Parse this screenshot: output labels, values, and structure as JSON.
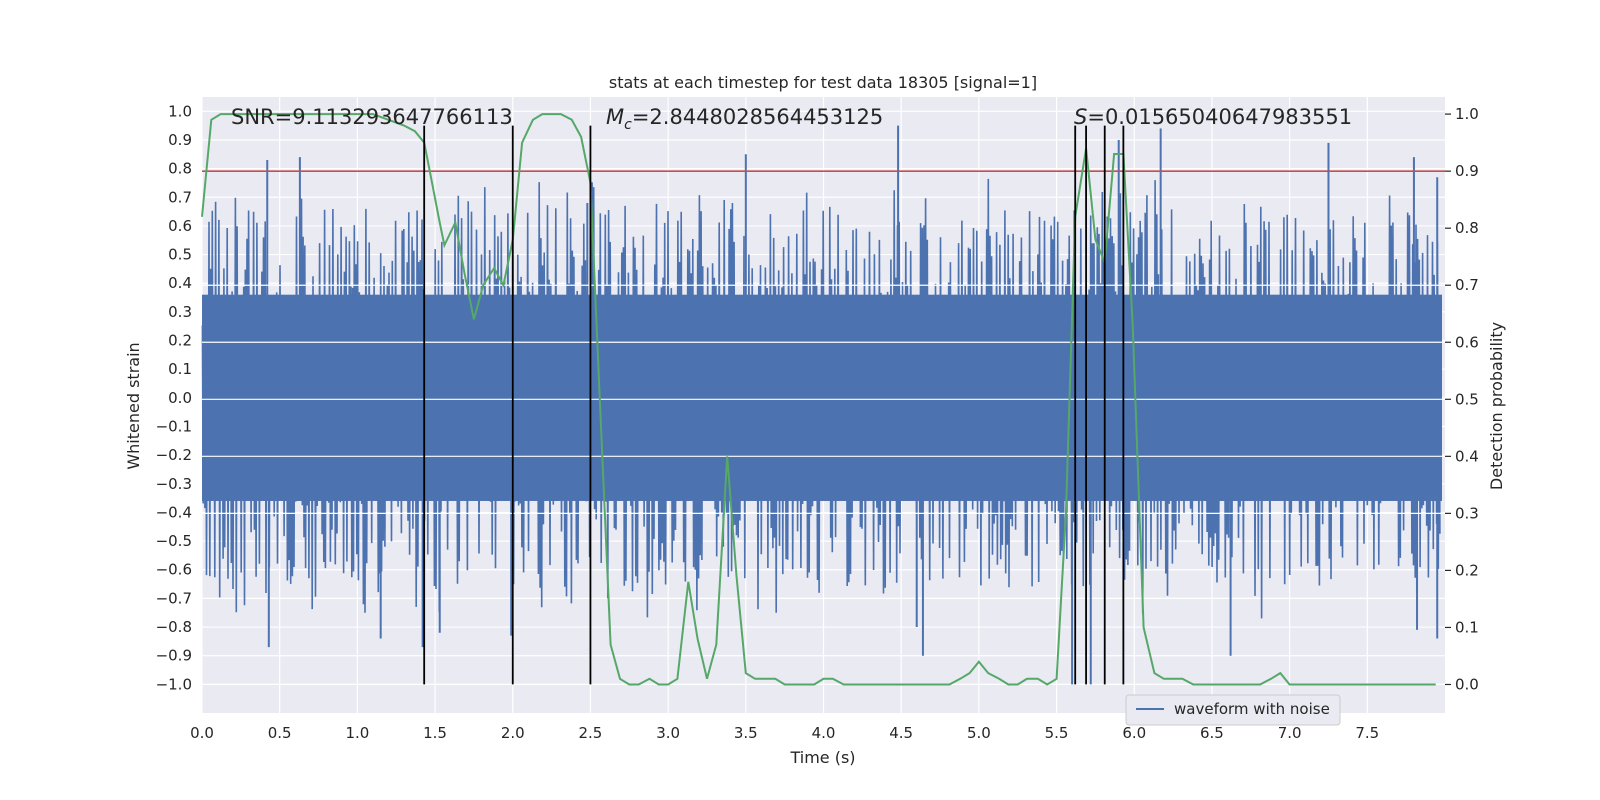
{
  "chart_data": {
    "type": "line",
    "title": "stats at each timestep for test data 18305 [signal=1]",
    "xlabel": "Time (s)",
    "ylabel": "Whitened strain",
    "y2label": "Detection probability",
    "xlim": [
      0.0,
      8.0
    ],
    "ylim": [
      -1.1,
      1.05
    ],
    "y2lim": [
      -0.05,
      1.03
    ],
    "xticks": [
      "0.0",
      "0.5",
      "1.0",
      "1.5",
      "2.0",
      "2.5",
      "3.0",
      "3.5",
      "4.0",
      "4.5",
      "5.0",
      "5.5",
      "6.0",
      "6.5",
      "7.0",
      "7.5"
    ],
    "yticks": [
      "1.0",
      "0.9",
      "0.8",
      "0.7",
      "0.6",
      "0.5",
      "0.4",
      "0.3",
      "0.2",
      "0.1",
      "0.0",
      "−0.1",
      "−0.2",
      "−0.3",
      "−0.4",
      "−0.5",
      "−0.6",
      "−0.7",
      "−0.8",
      "−0.9",
      "−1.0"
    ],
    "y2ticks": [
      "1.0",
      "0.9",
      "0.8",
      "0.7",
      "0.6",
      "0.5",
      "0.4",
      "0.3",
      "0.2",
      "0.1",
      "0.0"
    ],
    "annotations": {
      "snr": "SNR=9.113293647766113",
      "mc_symbol": "M",
      "mc_sub": "c",
      "mc_value": "=2.8448028564453125",
      "s_symbol": "S",
      "s_value": "=0.01565040647983551"
    },
    "legend": {
      "label": "waveform with noise",
      "position": "lower-right"
    },
    "threshold": {
      "value": 0.9,
      "axis": "y2"
    },
    "vertical_lines": [
      1.43,
      2.0,
      2.5,
      5.62,
      5.69,
      5.81,
      5.93
    ],
    "vertical_line_range": [
      -1.0,
      0.95
    ],
    "waveform": {
      "name": "waveform with noise",
      "samples": 1500,
      "core_amplitude": 0.36,
      "peak_amplitude_max": 0.95,
      "spikes": [
        {
          "t": 0.42,
          "v": 0.83
        },
        {
          "t": 0.63,
          "v": 0.84
        },
        {
          "t": 0.43,
          "v": -0.87
        },
        {
          "t": 1.15,
          "v": -0.84
        },
        {
          "t": 1.42,
          "v": -0.87
        },
        {
          "t": 1.53,
          "v": -0.82
        },
        {
          "t": 1.99,
          "v": -0.83
        },
        {
          "t": 3.5,
          "v": 0.85
        },
        {
          "t": 4.48,
          "v": 0.95
        },
        {
          "t": 4.6,
          "v": -0.8
        },
        {
          "t": 4.64,
          "v": -0.9
        },
        {
          "t": 5.6,
          "v": -1.0
        },
        {
          "t": 5.72,
          "v": -1.0
        },
        {
          "t": 5.9,
          "v": 0.9
        },
        {
          "t": 6.17,
          "v": 0.94
        },
        {
          "t": 6.62,
          "v": -0.9
        },
        {
          "t": 7.25,
          "v": 0.89
        },
        {
          "t": 7.8,
          "v": 0.84
        },
        {
          "t": 7.82,
          "v": -0.81
        },
        {
          "t": 7.95,
          "v": 0.77
        },
        {
          "t": 7.95,
          "v": -0.84
        },
        {
          "t": 2.48,
          "v": 0.68
        }
      ]
    },
    "detection_probability": {
      "name": "detection probability",
      "x": [
        0.0,
        0.06,
        0.12,
        0.2,
        0.4,
        0.6,
        0.8,
        1.0,
        1.1,
        1.2,
        1.3,
        1.37,
        1.43,
        1.48,
        1.53,
        1.56,
        1.63,
        1.69,
        1.75,
        1.81,
        1.88,
        1.94,
        2.0,
        2.06,
        2.13,
        2.19,
        2.31,
        2.38,
        2.44,
        2.5,
        2.56,
        2.63,
        2.69,
        2.75,
        2.81,
        2.88,
        2.94,
        3.0,
        3.06,
        3.13,
        3.19,
        3.25,
        3.31,
        3.38,
        3.44,
        3.5,
        3.56,
        3.63,
        3.69,
        3.75,
        3.81,
        3.88,
        3.94,
        4.0,
        4.06,
        4.13,
        4.19,
        4.25,
        4.31,
        4.38,
        4.44,
        4.5,
        4.56,
        4.63,
        4.69,
        4.75,
        4.81,
        4.88,
        4.94,
        5.0,
        5.06,
        5.13,
        5.19,
        5.25,
        5.31,
        5.38,
        5.44,
        5.5,
        5.56,
        5.62,
        5.69,
        5.75,
        5.81,
        5.87,
        5.93,
        5.99,
        6.06,
        6.13,
        6.19,
        6.25,
        6.31,
        6.38,
        6.44,
        6.5,
        6.56,
        6.63,
        6.69,
        6.75,
        6.81,
        6.88,
        6.94,
        7.0,
        7.06,
        7.13,
        7.19,
        7.25,
        7.31,
        7.38,
        7.44,
        7.5,
        7.56,
        7.63,
        7.69,
        7.75,
        7.81,
        7.88,
        7.94
      ],
      "y": [
        0.82,
        0.99,
        1.0,
        1.0,
        1.0,
        1.0,
        1.0,
        1.0,
        1.0,
        0.99,
        0.98,
        0.97,
        0.95,
        0.88,
        0.81,
        0.77,
        0.81,
        0.72,
        0.64,
        0.7,
        0.73,
        0.7,
        0.78,
        0.95,
        0.99,
        1.0,
        1.0,
        0.99,
        0.96,
        0.88,
        0.5,
        0.07,
        0.01,
        0.0,
        0.0,
        0.01,
        0.0,
        0.0,
        0.01,
        0.18,
        0.08,
        0.01,
        0.07,
        0.4,
        0.19,
        0.02,
        0.01,
        0.01,
        0.01,
        0.0,
        0.0,
        0.0,
        0.0,
        0.01,
        0.01,
        0.0,
        0.0,
        0.0,
        0.0,
        0.0,
        0.0,
        0.0,
        0.0,
        0.0,
        0.0,
        0.0,
        0.0,
        0.01,
        0.02,
        0.04,
        0.02,
        0.01,
        0.0,
        0.0,
        0.01,
        0.01,
        0.0,
        0.01,
        0.3,
        0.82,
        0.94,
        0.78,
        0.74,
        0.93,
        0.93,
        0.63,
        0.1,
        0.02,
        0.01,
        0.01,
        0.01,
        0.0,
        0.0,
        0.0,
        0.0,
        0.0,
        0.0,
        0.0,
        0.0,
        0.01,
        0.02,
        0.0,
        0.0,
        0.0,
        0.0,
        0.0,
        0.0,
        0.0,
        0.0,
        0.0,
        0.0,
        0.0,
        0.0,
        0.0,
        0.0,
        0.0,
        0.0
      ]
    },
    "colors": {
      "background": "#eaeaf2",
      "grid": "#ffffff",
      "waveform": "#4c72b0",
      "probability": "#55a868",
      "threshold": "#c44e52",
      "vertical": "#000000",
      "text": "#262626"
    }
  }
}
